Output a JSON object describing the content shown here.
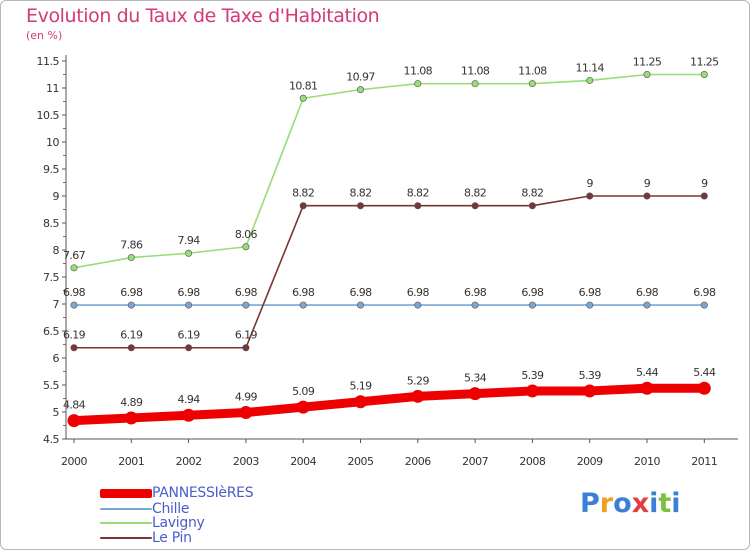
{
  "header": {
    "title": "Evolution du Taux de Taxe d'Habitation",
    "subtitle": "(en %)"
  },
  "chart_data": {
    "type": "line",
    "x": [
      "2000",
      "2001",
      "2002",
      "2003",
      "2004",
      "2005",
      "2006",
      "2007",
      "2008",
      "2009",
      "2010",
      "2011"
    ],
    "ylim": [
      4.5,
      11.5
    ],
    "yticks": [
      "4.5",
      "5",
      "5.5",
      "6",
      "6.5",
      "7",
      "7.5",
      "8",
      "8.5",
      "9",
      "9.5",
      "10",
      "10.5",
      "11",
      "11.5"
    ],
    "grid": false,
    "legend_position": "bottom-left",
    "series": [
      {
        "name": "PANNESSIèRES",
        "color": "#ee0000",
        "values": [
          4.84,
          4.89,
          4.94,
          4.99,
          5.09,
          5.19,
          5.29,
          5.34,
          5.39,
          5.39,
          5.44,
          5.44
        ],
        "labels": [
          "4.84",
          "4.89",
          "4.94",
          "4.99",
          "5.09",
          "5.19",
          "5.29",
          "5.34",
          "5.39",
          "5.39",
          "5.44",
          "5.44"
        ]
      },
      {
        "name": "Chille",
        "color": "#7aa6d0",
        "values": [
          6.98,
          6.98,
          6.98,
          6.98,
          6.98,
          6.98,
          6.98,
          6.98,
          6.98,
          6.98,
          6.98,
          6.98
        ],
        "labels": [
          "6.98",
          "6.98",
          "6.98",
          "6.98",
          "6.98",
          "6.98",
          "6.98",
          "6.98",
          "6.98",
          "6.98",
          "6.98",
          "6.98"
        ]
      },
      {
        "name": "Lavigny",
        "color": "#99dd77",
        "values": [
          7.67,
          7.86,
          7.94,
          8.06,
          10.81,
          10.97,
          11.08,
          11.08,
          11.08,
          11.14,
          11.25,
          11.25
        ],
        "labels": [
          "7.67",
          "7.86",
          "7.94",
          "8.06",
          "10.81",
          "10.97",
          "11.08",
          "11.08",
          "11.08",
          "11.14",
          "11.25",
          "11.25"
        ]
      },
      {
        "name": "Le Pin",
        "color": "#7a3535",
        "values": [
          6.19,
          6.19,
          6.19,
          6.19,
          8.82,
          8.82,
          8.82,
          8.82,
          8.82,
          9,
          9,
          9
        ],
        "labels": [
          "6.19",
          "6.19",
          "6.19",
          "6.19",
          "8.82",
          "8.82",
          "8.82",
          "8.82",
          "8.82",
          "9",
          "9",
          "9"
        ]
      }
    ]
  },
  "legend": {
    "items": [
      {
        "label": "PANNESSIèRES",
        "color": "#ee0000"
      },
      {
        "label": "Chille",
        "color": "#7aa6d0"
      },
      {
        "label": "Lavigny",
        "color": "#99dd77"
      },
      {
        "label": "Le Pin",
        "color": "#7a3535"
      }
    ]
  },
  "logo": {
    "letters": [
      "P",
      "r",
      "o",
      "x",
      "i",
      "t",
      "i"
    ],
    "colors": [
      "#3d7fd6",
      "#f0a020",
      "#3d7fd6",
      "#e04040",
      "#3d7fd6",
      "#80c040",
      "#3d7fd6"
    ]
  }
}
